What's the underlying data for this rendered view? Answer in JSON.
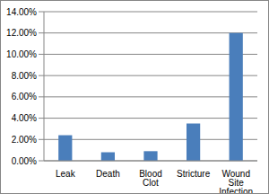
{
  "chart_data": {
    "type": "bar",
    "categories": [
      "Leak",
      "Death",
      "Blood Clot",
      "Stricture",
      "Wound Site Infection"
    ],
    "values": [
      2.4,
      0.8,
      0.9,
      3.5,
      12.0
    ],
    "color": "#4a7ebb",
    "ylim": [
      0,
      14
    ],
    "yticks": [
      {
        "value": 0,
        "label": "0.00%"
      },
      {
        "value": 2,
        "label": "2.00%"
      },
      {
        "value": 4,
        "label": "4.00%"
      },
      {
        "value": 6,
        "label": "6.00%"
      },
      {
        "value": 8,
        "label": "8.00%"
      },
      {
        "value": 10,
        "label": "10.00%"
      },
      {
        "value": 12,
        "label": "12.00%"
      },
      {
        "value": 14,
        "label": "14.00%"
      }
    ],
    "grid": true
  }
}
